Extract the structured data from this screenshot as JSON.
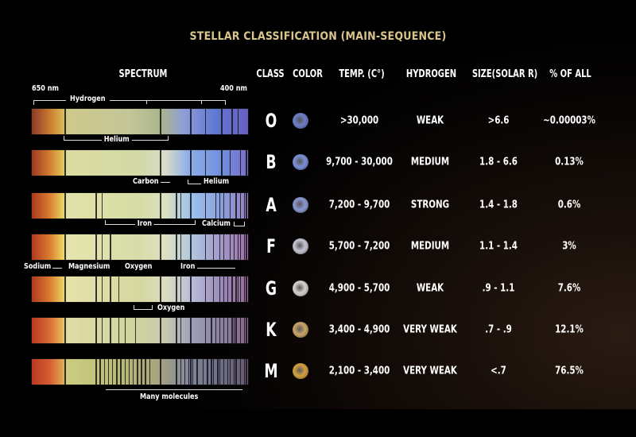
{
  "title": "STELLAR CLASSIFICATION (MAIN-SEQUENCE)",
  "headers": {
    "spectrum": "SPECTRUM",
    "class": "CLASS",
    "color": "COLOR",
    "temp": "TEMP. (C°)",
    "hydrogen": "HYDROGEN",
    "size": "SIZE(SOLAR R)",
    "percent": "% OF ALL"
  },
  "spectrum_labels": {
    "left_nm": "650 nm",
    "right_nm": "400 nm",
    "hydrogen": "Hydrogen",
    "helium_o": "Helium",
    "carbon": "Carbon",
    "helium_b": "Helium",
    "iron_a": "Iron",
    "calcium": "Calcium",
    "sodium": "Sodium",
    "magnesium": "Magnesium",
    "oxygen_f": "Oxygen",
    "iron_f": "Iron",
    "oxygen_g": "Oxygen",
    "many_molecules": "Many molecules"
  },
  "rows": [
    {
      "class": "O",
      "color": "#6f7fc8",
      "temp": ">30,000",
      "hydrogen": "WEAK",
      "size": ">6.6",
      "percent": "~0.00003%"
    },
    {
      "class": "B",
      "color": "#7b90d6",
      "temp": "9,700 - 30,000",
      "hydrogen": "MEDIUM",
      "size": "1.8 - 6.6",
      "percent": "0.13%"
    },
    {
      "class": "A",
      "color": "#8a98d0",
      "temp": "7,200 - 9,700",
      "hydrogen": "STRONG",
      "size": "1.4 - 1.8",
      "percent": "0.6%"
    },
    {
      "class": "F",
      "color": "#c4c4d4",
      "temp": "5,700 - 7,200",
      "hydrogen": "MEDIUM",
      "size": "1.1 - 1.4",
      "percent": "3%"
    },
    {
      "class": "G",
      "color": "#d6d2cc",
      "temp": "4,900 - 5,700",
      "hydrogen": "WEAK",
      "size": ".9 - 1.1",
      "percent": "7.6%"
    },
    {
      "class": "K",
      "color": "#c8a468",
      "temp": "3,400 - 4,900",
      "hydrogen": "VERY WEAK",
      "size": ".7 - .9",
      "percent": "12.1%"
    },
    {
      "class": "M",
      "color": "#d4a040",
      "temp": "2,100 - 3,400",
      "hydrogen": "VERY WEAK",
      "size": "<.7",
      "percent": "76.5%"
    }
  ]
}
